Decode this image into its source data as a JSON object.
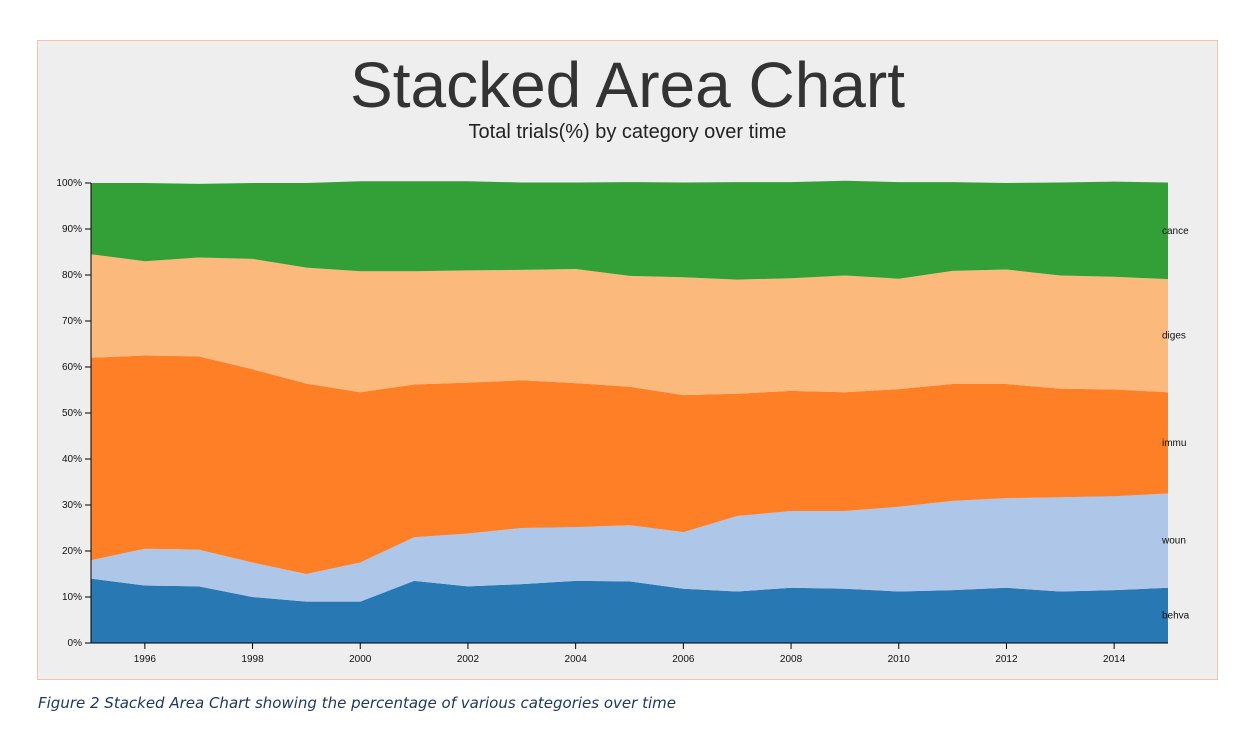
{
  "caption": "Figure 2 Stacked Area Chart showing the percentage of various categories over time",
  "chart_data": {
    "type": "area",
    "stacked": true,
    "title": "Stacked Area Chart",
    "subtitle": "Total trials(%) by category over time",
    "x": [
      1995,
      1996,
      1997,
      1998,
      1999,
      2000,
      2001,
      2002,
      2003,
      2004,
      2005,
      2006,
      2007,
      2008,
      2009,
      2010,
      2011,
      2012,
      2013,
      2014,
      2015
    ],
    "xlim": [
      1995,
      2015
    ],
    "ylim": [
      0,
      100
    ],
    "x_ticks": [
      "1996",
      "1998",
      "2000",
      "2002",
      "2004",
      "2006",
      "2008",
      "2010",
      "2012",
      "2014"
    ],
    "y_ticks": [
      "0%",
      "10%",
      "20%",
      "30%",
      "40%",
      "50%",
      "60%",
      "70%",
      "80%",
      "90%",
      "100%"
    ],
    "series": [
      {
        "name": "behva",
        "color": "#2878b4",
        "values": [
          14,
          12.5,
          12.3,
          10,
          9,
          9,
          13.5,
          12.3,
          12.8,
          13.5,
          13.4,
          11.8,
          11.2,
          12,
          11.8,
          11.2,
          11.5,
          12,
          11.2,
          11.5,
          12
        ]
      },
      {
        "name": "wound",
        "color": "#aec7e8",
        "values": [
          4,
          8,
          8,
          7.5,
          6,
          8.5,
          9.5,
          11.5,
          12.2,
          11.7,
          12.2,
          12.3,
          16.4,
          16.7,
          16.9,
          18.4,
          19.4,
          19.5,
          20.5,
          20.4,
          20.5
        ]
      },
      {
        "name": "immun",
        "color": "#ff7f27",
        "values": [
          44,
          42,
          42,
          42,
          41.4,
          37,
          33.2,
          32.8,
          32.1,
          31.3,
          30.1,
          29.8,
          26.6,
          26.1,
          25.8,
          25.6,
          25.4,
          24.8,
          23.6,
          23.2,
          22
        ]
      },
      {
        "name": "digest",
        "color": "#fbba7c",
        "values": [
          22.5,
          20.5,
          21.5,
          24,
          25.2,
          26.3,
          24.6,
          24.4,
          24,
          24.8,
          24.1,
          25.6,
          24.8,
          24.5,
          25.4,
          24,
          24.6,
          24.9,
          24.6,
          24.5,
          24.6
        ]
      },
      {
        "name": "cancer",
        "color": "#33a037",
        "values": [
          15.5,
          17,
          16,
          16.5,
          18.4,
          19.6,
          19.6,
          19.4,
          19,
          18.8,
          20.4,
          20.6,
          21.2,
          20.9,
          20.6,
          21,
          19.3,
          18.8,
          20.2,
          20.7,
          21
        ]
      }
    ],
    "visible_series_labels": [
      "cance",
      "diges",
      "immu",
      "woun",
      "behva"
    ],
    "legend": "inline-right"
  }
}
